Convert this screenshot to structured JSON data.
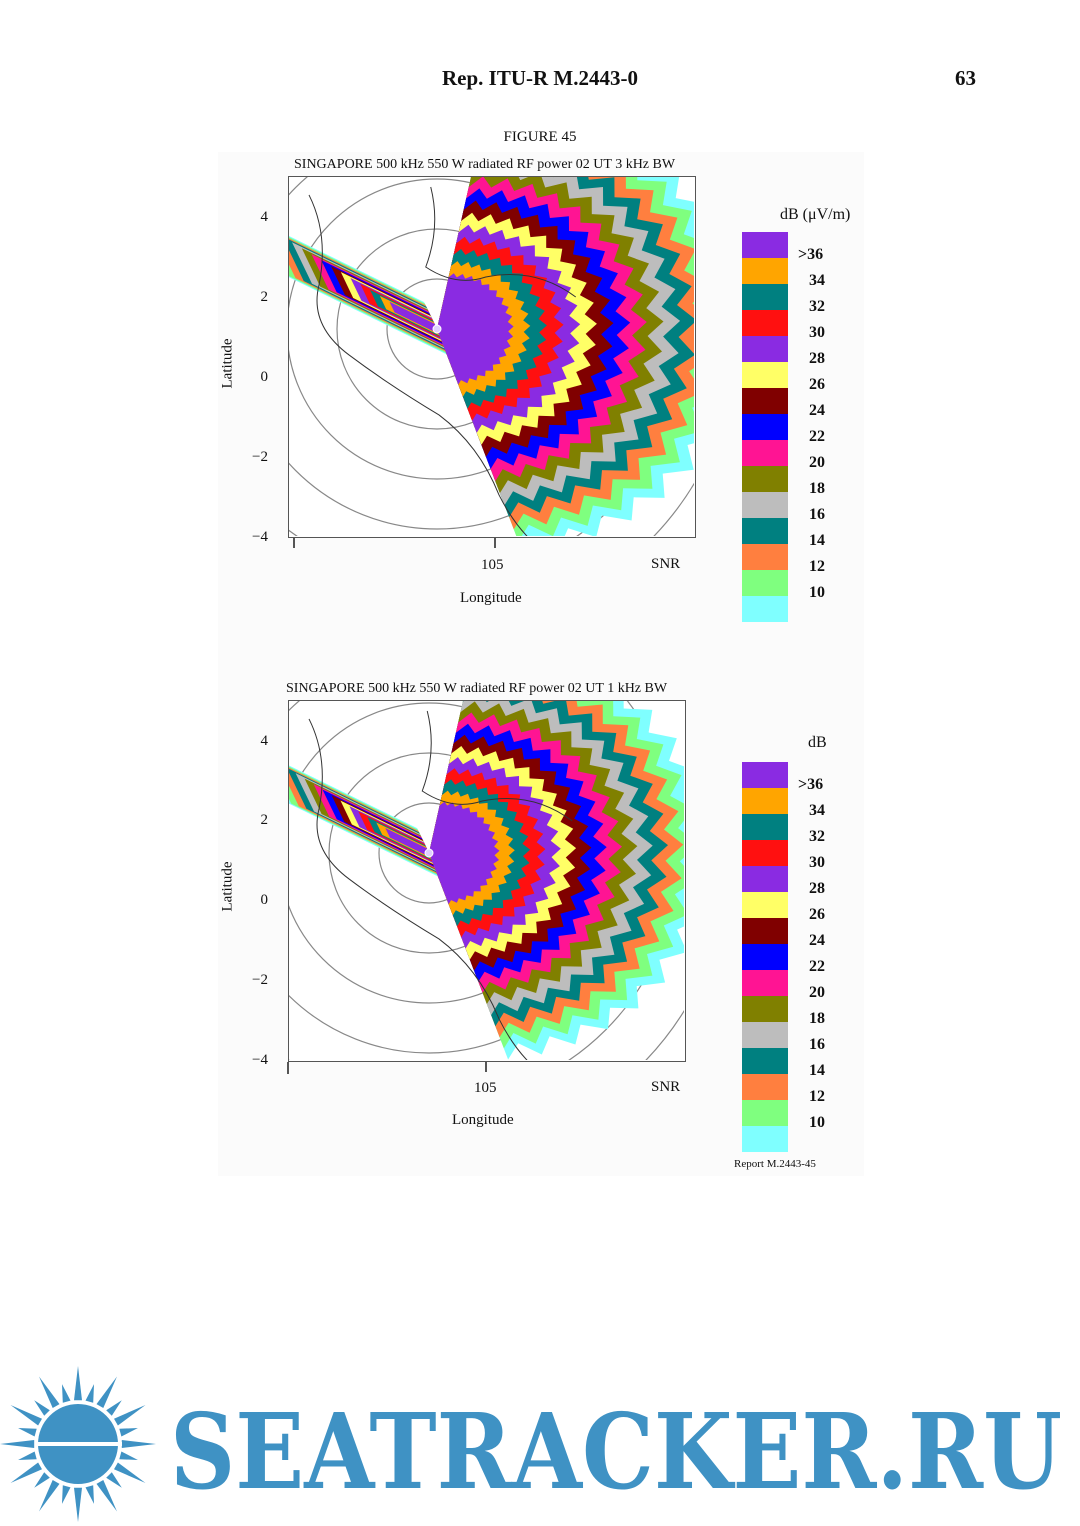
{
  "header": {
    "doc_title": "Rep.  ITU-R  M.2443-0",
    "page_number": "63"
  },
  "figure": {
    "caption": "FIGURE 45",
    "report_id": "Report M.2443-45",
    "panels": [
      {
        "title": "SINGAPORE 500 kHz  550 W radiated RF power 02 UT 3 kHz BW",
        "ylabel": "Latitude",
        "xlabel": "Longitude",
        "yticks": [
          "4",
          "2",
          "0",
          "−2",
          "−4"
        ],
        "xtick": "105",
        "snr_label": "SNR",
        "legend_title": "dB (μV/m)",
        "legend_labels": [
          ">36",
          "34",
          "32",
          "30",
          "28",
          "26",
          "24",
          "22",
          "20",
          "18",
          "16",
          "14",
          "12",
          "10"
        ]
      },
      {
        "title": "SINGAPORE 500 kHz  550 W radiated RF power 02 UT 1 kHz BW",
        "ylabel": "Latitude",
        "xlabel": "Longitude",
        "yticks": [
          "4",
          "2",
          "0",
          "−2",
          "−4"
        ],
        "xtick": "105",
        "snr_label": "SNR",
        "legend_title": "dB",
        "legend_labels": [
          ">36",
          "34",
          "32",
          "30",
          "28",
          "26",
          "24",
          "22",
          "20",
          "18",
          "16",
          "14",
          "12",
          "10"
        ]
      }
    ],
    "legend_colors": [
      "#8a2be2",
      "#ffa500",
      "#008080",
      "#ff1010",
      "#8a2be2",
      "#ffff66",
      "#800000",
      "#0000ff",
      "#ff1493",
      "#808000",
      "#bdbdbd",
      "#008080",
      "#ff7f3f",
      "#7fff7f",
      "#7fffff"
    ]
  },
  "watermark": {
    "text": "SEATRACKER.RU",
    "color": "#3f92c4"
  }
}
